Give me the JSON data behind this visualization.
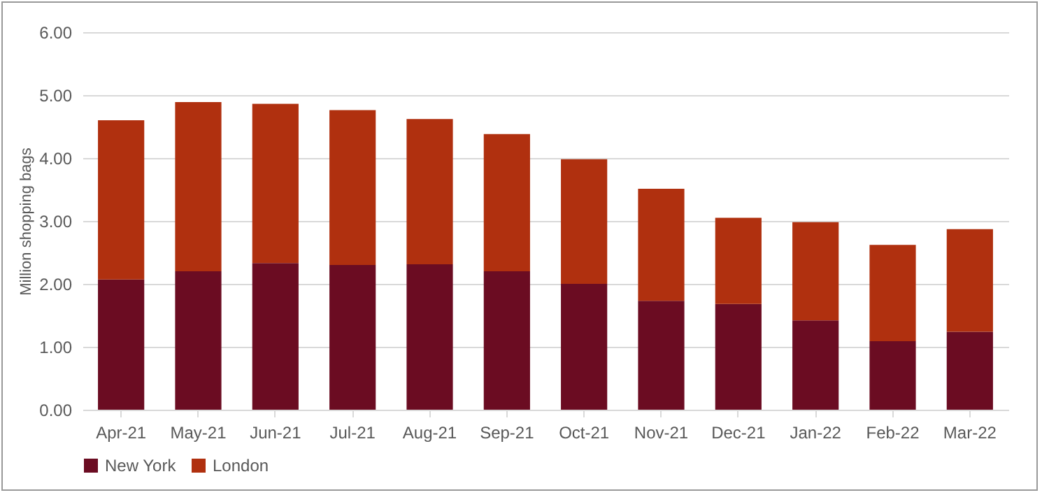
{
  "chart_data": {
    "type": "bar",
    "stacked": true,
    "ylabel": "Million shopping bags",
    "categories": [
      "Apr-21",
      "May-21",
      "Jun-21",
      "Jul-21",
      "Aug-21",
      "Sep-21",
      "Oct-21",
      "Nov-21",
      "Dec-21",
      "Jan-22",
      "Feb-22",
      "Mar-22"
    ],
    "series": [
      {
        "name": "New York",
        "color": "#6b0c22",
        "values": [
          2.07,
          2.2,
          2.33,
          2.3,
          2.31,
          2.2,
          2.0,
          1.73,
          1.68,
          1.42,
          1.09,
          1.24
        ]
      },
      {
        "name": "London",
        "color": "#b0300f",
        "values": [
          2.53,
          2.69,
          2.53,
          2.46,
          2.31,
          2.18,
          1.98,
          1.78,
          1.37,
          1.56,
          1.53,
          1.63
        ]
      }
    ],
    "ylim": [
      0,
      6
    ],
    "yticks": [
      {
        "value": 0,
        "label": "0.00"
      },
      {
        "value": 1,
        "label": "1.00"
      },
      {
        "value": 2,
        "label": "2.00"
      },
      {
        "value": 3,
        "label": "3.00"
      },
      {
        "value": 4,
        "label": "4.00"
      },
      {
        "value": 5,
        "label": "5.00"
      },
      {
        "value": 6,
        "label": "6.00"
      }
    ],
    "grid": "y",
    "legend": "bottom"
  }
}
